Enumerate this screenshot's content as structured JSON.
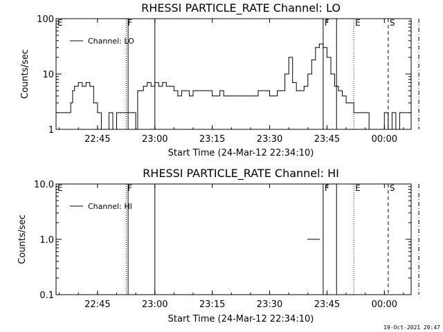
{
  "timestamp": "19-Oct-2021 20:47",
  "chart_data": [
    {
      "type": "line",
      "title": "RHESSI PARTICLE_RATE Channel: LO",
      "xlabel": "Start Time (24-Mar-12 22:34:10)",
      "ylabel": "Counts/sec",
      "yscale": "log",
      "ylim": [
        1,
        100
      ],
      "xlim": [
        "22:34:10",
        "00:07"
      ],
      "xticks": [
        "22:45",
        "23:00",
        "23:15",
        "23:30",
        "23:45",
        "00:00"
      ],
      "yticks": [
        "1",
        "10",
        "100"
      ],
      "legend": "top-left",
      "series": [
        {
          "name": "Channel: LO",
          "x": [
            "22:34:10",
            "22:36",
            "22:37",
            "22:38",
            "22:38:30",
            "22:39",
            "22:40",
            "22:41",
            "22:42",
            "22:43",
            "22:44",
            "22:45",
            "22:46",
            "22:47",
            "22:48",
            "22:49",
            "22:50",
            "22:51",
            "22:52",
            "22:53",
            "22:54",
            "22:55",
            "22:55:30",
            "22:56",
            "22:57",
            "22:58",
            "22:59",
            "23:00",
            "23:01",
            "23:02",
            "23:03",
            "23:04",
            "23:05",
            "23:06",
            "23:07",
            "23:08",
            "23:09",
            "23:10",
            "23:11",
            "23:12",
            "23:13",
            "23:14",
            "23:15",
            "23:16",
            "23:17",
            "23:18",
            "23:19",
            "23:20",
            "23:21",
            "23:22",
            "23:23",
            "23:24",
            "23:25",
            "23:26",
            "23:27",
            "23:28",
            "23:29",
            "23:30",
            "23:31",
            "23:32",
            "23:33",
            "23:34",
            "23:35",
            "23:36",
            "23:37",
            "23:38",
            "23:39",
            "23:40",
            "23:41",
            "23:42",
            "23:43",
            "23:44",
            "23:45",
            "23:46",
            "23:47",
            "23:48",
            "23:49",
            "23:50",
            "23:51",
            "23:52",
            "23:53",
            "23:54",
            "23:55",
            "23:56",
            "23:57",
            "23:58",
            "23:59",
            "00:00",
            "00:01",
            "00:02",
            "00:03",
            "00:04",
            "00:05",
            "00:06",
            "00:07"
          ],
          "y": [
            2,
            2,
            2,
            3,
            5,
            6,
            7,
            6,
            7,
            6,
            3,
            2,
            1,
            1,
            2,
            1,
            2,
            2,
            2,
            2,
            2,
            1,
            5,
            5,
            6,
            7,
            6,
            7,
            6,
            7,
            6,
            6,
            5,
            4,
            5,
            5,
            4,
            5,
            5,
            5,
            5,
            5,
            4,
            4,
            5,
            4,
            4,
            4,
            4,
            4,
            4,
            4,
            4,
            4,
            5,
            5,
            5,
            4,
            4,
            5,
            5,
            10,
            20,
            7,
            5,
            5,
            6,
            10,
            18,
            30,
            35,
            30,
            20,
            10,
            6,
            5,
            4,
            3,
            3,
            2,
            2,
            2,
            2,
            1,
            1,
            1,
            1,
            2,
            1,
            2,
            1,
            2,
            2,
            2,
            3
          ]
        }
      ],
      "markers": [
        {
          "label": "E",
          "time": "22:34:10",
          "style": "solid"
        },
        {
          "label": "F",
          "time": "22:52:30",
          "style": "dotted"
        },
        {
          "label": "",
          "time": "22:53",
          "style": "solid"
        },
        {
          "label": "",
          "time": "23:00",
          "style": "solid"
        },
        {
          "label": "F",
          "time": "23:44",
          "style": "solid"
        },
        {
          "label": "",
          "time": "23:47:30",
          "style": "solid"
        },
        {
          "label": "E",
          "time": "23:52",
          "style": "dotted"
        },
        {
          "label": "S",
          "time": "00:01",
          "style": "dashed"
        },
        {
          "label": "",
          "time": "00:09",
          "style": "dashdot"
        }
      ]
    },
    {
      "type": "line",
      "title": "RHESSI PARTICLE_RATE Channel: HI",
      "xlabel": "Start Time (24-Mar-12 22:34:10)",
      "ylabel": "Counts/sec",
      "yscale": "log",
      "ylim": [
        0.1,
        10
      ],
      "xlim": [
        "22:34:10",
        "00:07"
      ],
      "xticks": [
        "22:45",
        "23:00",
        "23:15",
        "23:30",
        "23:45",
        "00:00"
      ],
      "yticks": [
        "0.1",
        "1.0",
        "10.0"
      ],
      "legend": "top-left",
      "series": [
        {
          "name": "Channel: HI",
          "x": [
            "23:40",
            "23:41",
            "23:42",
            "23:43"
          ],
          "y": [
            1,
            1,
            1,
            1
          ]
        }
      ],
      "markers": [
        {
          "label": "E",
          "time": "22:34:10",
          "style": "solid"
        },
        {
          "label": "F",
          "time": "22:52:30",
          "style": "dotted"
        },
        {
          "label": "",
          "time": "22:53",
          "style": "solid"
        },
        {
          "label": "",
          "time": "23:00",
          "style": "solid"
        },
        {
          "label": "F",
          "time": "23:44",
          "style": "solid"
        },
        {
          "label": "",
          "time": "23:47:30",
          "style": "solid"
        },
        {
          "label": "E",
          "time": "23:52",
          "style": "dotted"
        },
        {
          "label": "S",
          "time": "00:01",
          "style": "dashed"
        },
        {
          "label": "",
          "time": "00:09",
          "style": "dashdot"
        }
      ]
    }
  ]
}
